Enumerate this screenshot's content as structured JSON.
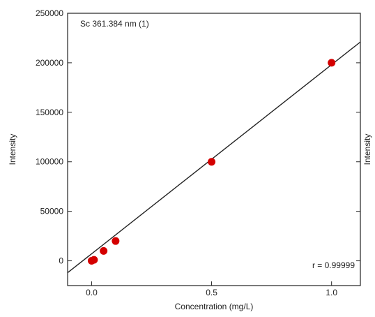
{
  "chart_data": {
    "type": "scatter",
    "title": "Sc 361.384 nm (1)",
    "xlabel": "Concentration (mg/L)",
    "ylabel": "Intensity",
    "ylabel_right": "Intensity",
    "xlim": [
      -0.1,
      1.12
    ],
    "ylim": [
      -25000,
      250000
    ],
    "xticks": [
      0.0,
      0.5,
      1.0
    ],
    "xtick_labels": [
      "0.0",
      "0.5",
      "1.0"
    ],
    "yticks": [
      0,
      50000,
      100000,
      150000,
      200000,
      250000
    ],
    "ytick_labels": [
      "0",
      "50000",
      "100000",
      "150000",
      "200000",
      "250000"
    ],
    "grid": false,
    "series": [
      {
        "color": "#d40000",
        "x": [
          0.0,
          0.01,
          0.05,
          0.1,
          0.5,
          1.0
        ],
        "y": [
          0,
          1000,
          10000,
          20000,
          100000,
          200000
        ]
      }
    ],
    "fit_line": {
      "color": "#222222",
      "x": [
        -0.1,
        1.12
      ],
      "y": [
        -12000,
        221000
      ]
    },
    "annotation": "r = 0.99999"
  }
}
